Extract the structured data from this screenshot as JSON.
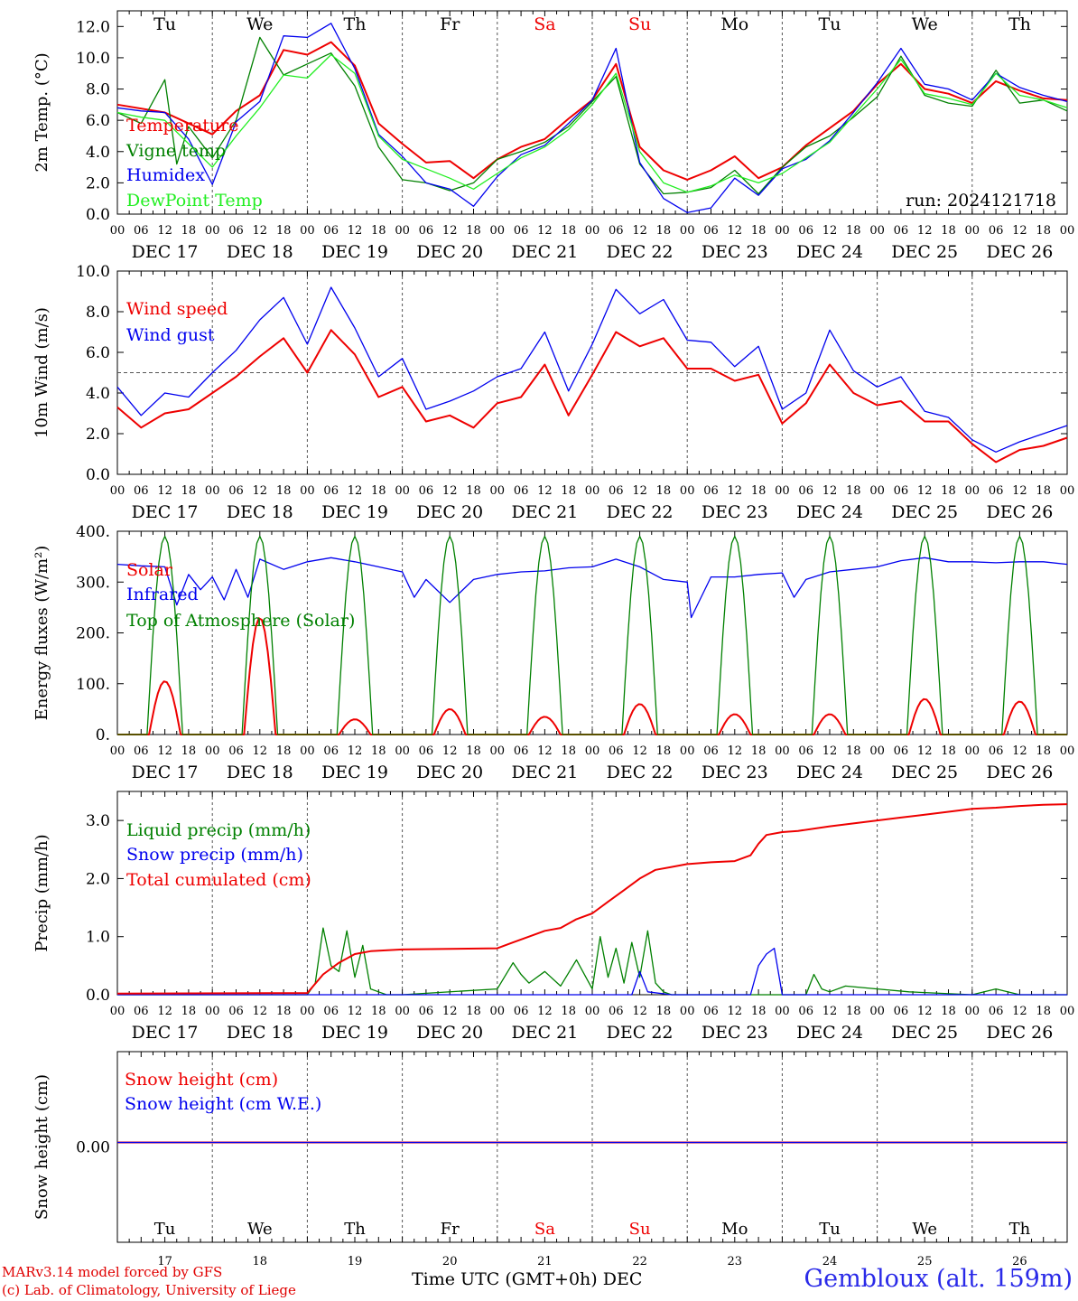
{
  "run_label": "run: 2024121718",
  "footer": {
    "credit_line1": "MARv3.14 model forced by GFS",
    "credit_line2": "(c) Lab. of Climatology, University of Liege",
    "x_title": "Time UTC (GMT+0h) DEC",
    "station": "Gembloux (alt. 159m)"
  },
  "colors": {
    "red": "#ee0000",
    "green": "#008000",
    "blue": "#0000ee",
    "lightgreen": "#22ee22",
    "weekend": "#ee0000"
  },
  "days": [
    {
      "wd": "Tu",
      "date": "DEC 17",
      "num": "17",
      "weekend": false
    },
    {
      "wd": "We",
      "date": "DEC 18",
      "num": "18",
      "weekend": false
    },
    {
      "wd": "Th",
      "date": "DEC 19",
      "num": "19",
      "weekend": false
    },
    {
      "wd": "Fr",
      "date": "DEC 20",
      "num": "20",
      "weekend": false
    },
    {
      "wd": "Sa",
      "date": "DEC 21",
      "num": "21",
      "weekend": true
    },
    {
      "wd": "Su",
      "date": "DEC 22",
      "num": "22",
      "weekend": true
    },
    {
      "wd": "Mo",
      "date": "DEC 23",
      "num": "23",
      "weekend": false
    },
    {
      "wd": "Tu",
      "date": "DEC 24",
      "num": "24",
      "weekend": false
    },
    {
      "wd": "We",
      "date": "DEC 25",
      "num": "25",
      "weekend": false
    },
    {
      "wd": "Th",
      "date": "DEC 26",
      "num": "26",
      "weekend": false
    }
  ],
  "hour_labels": [
    "00",
    "06",
    "12",
    "18"
  ],
  "chart_data": [
    {
      "type": "line",
      "ylabel": "2m Temp. (°C)",
      "ylim": [
        0,
        13
      ],
      "yticks": [
        "0.0",
        "2.0",
        "4.0",
        "6.0",
        "8.0",
        "10.0",
        "12.0"
      ],
      "x_unit": "hours since 2024-12-17 00 UTC",
      "series": [
        {
          "name": "Temperature",
          "color": "red",
          "x": [
            0,
            12,
            24,
            30,
            36,
            42,
            48,
            54,
            60,
            66,
            72,
            78,
            84,
            90,
            96,
            102,
            108,
            114,
            120,
            126,
            132,
            138,
            144,
            150,
            156,
            162,
            168,
            174,
            180,
            186,
            192,
            198,
            204,
            210,
            216,
            222,
            228,
            234,
            240
          ],
          "values": [
            7.0,
            6.5,
            5.1,
            6.6,
            7.6,
            10.5,
            10.2,
            11.0,
            9.5,
            5.8,
            4.5,
            3.3,
            3.4,
            2.3,
            3.5,
            4.3,
            4.8,
            6.1,
            7.3,
            9.6,
            4.3,
            2.8,
            2.2,
            2.8,
            3.7,
            2.3,
            3.0,
            4.4,
            5.5,
            6.6,
            8.3,
            9.6,
            8.0,
            7.7,
            7.1,
            8.5,
            7.9,
            7.4,
            7.3
          ]
        },
        {
          "name": "Vigne temp",
          "color": "green",
          "x": [
            0,
            6,
            12,
            15,
            18,
            24,
            30,
            36,
            42,
            48,
            54,
            60,
            66,
            72,
            78,
            84,
            90,
            96,
            102,
            108,
            114,
            120,
            126,
            132,
            138,
            144,
            150,
            156,
            162,
            168,
            174,
            180,
            186,
            192,
            198,
            204,
            210,
            216,
            222,
            228,
            234,
            240
          ],
          "values": [
            6.5,
            5.8,
            8.6,
            3.2,
            5.6,
            3.6,
            6.0,
            11.3,
            8.9,
            9.6,
            10.3,
            8.2,
            4.3,
            2.2,
            2.0,
            1.5,
            2.0,
            3.5,
            4.0,
            4.6,
            5.6,
            7.2,
            8.8,
            3.2,
            1.3,
            1.4,
            1.7,
            2.8,
            1.3,
            3.0,
            4.3,
            5.0,
            6.2,
            7.5,
            10.1,
            7.6,
            7.1,
            6.9,
            9.2,
            7.1,
            7.3,
            6.6
          ]
        },
        {
          "name": "Humidex",
          "color": "blue",
          "x": [
            0,
            6,
            12,
            18,
            24,
            30,
            36,
            42,
            48,
            54,
            60,
            66,
            72,
            78,
            84,
            90,
            96,
            102,
            108,
            114,
            120,
            126,
            132,
            138,
            144,
            150,
            156,
            162,
            168,
            174,
            180,
            186,
            192,
            198,
            204,
            210,
            216,
            222,
            228,
            234,
            240
          ],
          "values": [
            6.8,
            6.6,
            6.5,
            4.8,
            1.9,
            5.9,
            7.2,
            11.4,
            11.3,
            12.2,
            9.3,
            5.1,
            3.7,
            2.0,
            1.6,
            0.5,
            2.4,
            3.8,
            4.4,
            5.8,
            7.3,
            10.6,
            3.3,
            1.0,
            0.1,
            0.4,
            2.3,
            1.2,
            2.9,
            3.5,
            4.7,
            6.5,
            8.4,
            10.6,
            8.3,
            8.0,
            7.3,
            9.0,
            8.1,
            7.6,
            7.2
          ]
        },
        {
          "name": "DewPoint Temp",
          "color": "lightgreen",
          "x": [
            0,
            6,
            12,
            18,
            24,
            30,
            36,
            42,
            48,
            54,
            60,
            66,
            72,
            78,
            84,
            90,
            96,
            102,
            108,
            114,
            120,
            126,
            132,
            138,
            144,
            150,
            156,
            162,
            168,
            174,
            180,
            186,
            192,
            198,
            204,
            210,
            216,
            222,
            228,
            234,
            240
          ],
          "values": [
            6.5,
            6.2,
            6.0,
            4.5,
            3.0,
            5.0,
            6.8,
            8.9,
            8.7,
            10.2,
            9.0,
            5.0,
            3.5,
            2.9,
            2.3,
            1.6,
            2.6,
            3.6,
            4.3,
            5.4,
            7.0,
            9.0,
            4.0,
            2.0,
            1.4,
            1.8,
            2.5,
            2.0,
            2.6,
            3.6,
            4.6,
            6.3,
            8.0,
            9.9,
            7.7,
            7.4,
            7.0,
            9.0,
            7.6,
            7.3,
            6.8
          ]
        }
      ]
    },
    {
      "type": "line",
      "ylabel": "10m Wind (m/s)",
      "ylim": [
        0,
        10
      ],
      "yticks": [
        "0.0",
        "2.0",
        "4.0",
        "6.0",
        "8.0",
        "10.0"
      ],
      "ref_line": 5.0,
      "series": [
        {
          "name": "Wind speed",
          "color": "red",
          "x": [
            0,
            6,
            12,
            18,
            24,
            30,
            36,
            42,
            48,
            54,
            60,
            66,
            72,
            78,
            84,
            90,
            96,
            102,
            108,
            114,
            120,
            126,
            132,
            138,
            144,
            150,
            156,
            162,
            168,
            174,
            180,
            186,
            192,
            198,
            204,
            210,
            216,
            222,
            228,
            234,
            240
          ],
          "values": [
            3.3,
            2.3,
            3.0,
            3.2,
            4.0,
            4.8,
            5.8,
            6.7,
            5.0,
            7.1,
            5.9,
            3.8,
            4.3,
            2.6,
            2.9,
            2.3,
            3.5,
            3.8,
            5.4,
            2.9,
            4.9,
            7.0,
            6.3,
            6.7,
            5.2,
            5.2,
            4.6,
            4.9,
            2.5,
            3.5,
            5.4,
            4.0,
            3.4,
            3.6,
            2.6,
            2.6,
            1.5,
            0.6,
            1.2,
            1.4,
            1.8
          ]
        },
        {
          "name": "Wind gust",
          "color": "blue",
          "x": [
            0,
            6,
            12,
            18,
            24,
            30,
            36,
            42,
            48,
            54,
            60,
            66,
            72,
            78,
            84,
            90,
            96,
            102,
            108,
            114,
            120,
            126,
            132,
            138,
            144,
            150,
            156,
            162,
            168,
            174,
            180,
            186,
            192,
            198,
            204,
            210,
            216,
            222,
            228,
            234,
            240
          ],
          "values": [
            4.3,
            2.9,
            4.0,
            3.8,
            5.0,
            6.1,
            7.6,
            8.7,
            6.4,
            9.2,
            7.2,
            4.8,
            5.7,
            3.2,
            3.6,
            4.1,
            4.8,
            5.2,
            7.0,
            4.1,
            6.4,
            9.1,
            7.9,
            8.6,
            6.6,
            6.5,
            5.3,
            6.3,
            3.2,
            4.0,
            7.1,
            5.1,
            4.3,
            4.8,
            3.1,
            2.8,
            1.7,
            1.1,
            1.6,
            2.0,
            2.4
          ]
        }
      ]
    },
    {
      "type": "line",
      "ylabel": "Energy fluxes (W/m²)",
      "ylim": [
        0,
        400
      ],
      "yticks": [
        "0.",
        "100.",
        "200.",
        "300.",
        "400."
      ],
      "series": [
        {
          "name": "Solar",
          "color": "red",
          "peaks": [
            105,
            230,
            30,
            50,
            35,
            60,
            40,
            40,
            70,
            65
          ]
        },
        {
          "name": "Infrared",
          "color": "blue",
          "x": [
            0,
            6,
            12,
            15,
            18,
            21,
            24,
            27,
            30,
            33,
            36,
            42,
            48,
            54,
            60,
            66,
            72,
            75,
            78,
            84,
            90,
            96,
            102,
            108,
            114,
            120,
            126,
            132,
            138,
            144,
            145,
            150,
            156,
            162,
            168,
            171,
            174,
            180,
            186,
            192,
            198,
            204,
            210,
            216,
            222,
            228,
            234,
            240
          ],
          "values": [
            335,
            332,
            330,
            255,
            315,
            285,
            310,
            265,
            325,
            270,
            345,
            325,
            340,
            348,
            340,
            330,
            320,
            270,
            305,
            260,
            305,
            315,
            320,
            322,
            328,
            330,
            345,
            330,
            305,
            300,
            230,
            310,
            310,
            315,
            318,
            270,
            305,
            320,
            325,
            330,
            342,
            348,
            340,
            340,
            338,
            340,
            340,
            335
          ]
        },
        {
          "name": "Top of Atmosphere (Solar)",
          "color": "green",
          "peaks": [
            390,
            390,
            390,
            390,
            390,
            390,
            390,
            390,
            390,
            390
          ]
        }
      ]
    },
    {
      "type": "line",
      "ylabel": "Precip (mm/h)",
      "ylim": [
        0,
        3.5
      ],
      "yticks": [
        "0.0",
        "1.0",
        "2.0",
        "3.0"
      ],
      "series": [
        {
          "name": "Liquid precip (mm/h)",
          "color": "green",
          "x": [
            0,
            24,
            48,
            50,
            52,
            54,
            56,
            58,
            60,
            62,
            64,
            66,
            68,
            70,
            72,
            96,
            100,
            102,
            104,
            108,
            112,
            116,
            120,
            122,
            124,
            126,
            128,
            130,
            132,
            134,
            136,
            138,
            140,
            144,
            174,
            176,
            178,
            180,
            184,
            192,
            200,
            216,
            222,
            228,
            240
          ],
          "values": [
            0.0,
            0.0,
            0.0,
            0.2,
            1.15,
            0.5,
            0.4,
            1.1,
            0.3,
            0.85,
            0.1,
            0.05,
            0.0,
            0.0,
            0.0,
            0.1,
            0.55,
            0.35,
            0.2,
            0.4,
            0.15,
            0.6,
            0.1,
            1.0,
            0.3,
            0.8,
            0.2,
            0.9,
            0.3,
            1.1,
            0.2,
            0.05,
            0.0,
            0.0,
            0.0,
            0.35,
            0.1,
            0.05,
            0.15,
            0.1,
            0.05,
            0.0,
            0.1,
            0.0,
            0.0
          ]
        },
        {
          "name": "Snow precip (mm/h)",
          "color": "blue",
          "x": [
            0,
            130,
            132,
            134,
            140,
            160,
            162,
            164,
            166,
            168,
            170,
            240
          ],
          "values": [
            0.0,
            0.0,
            0.4,
            0.05,
            0.0,
            0.0,
            0.5,
            0.7,
            0.8,
            0.0,
            0.0,
            0.0
          ]
        },
        {
          "name": "Total cumulated (cm)",
          "color": "red",
          "x": [
            0,
            48,
            52,
            56,
            60,
            64,
            72,
            96,
            100,
            104,
            108,
            112,
            116,
            120,
            124,
            128,
            132,
            136,
            140,
            144,
            150,
            156,
            160,
            162,
            164,
            168,
            172,
            180,
            186,
            192,
            198,
            204,
            210,
            216,
            222,
            228,
            234,
            240
          ],
          "values": [
            0.02,
            0.03,
            0.35,
            0.55,
            0.7,
            0.75,
            0.78,
            0.8,
            0.9,
            1.0,
            1.1,
            1.15,
            1.3,
            1.4,
            1.6,
            1.8,
            2.0,
            2.15,
            2.2,
            2.25,
            2.28,
            2.3,
            2.4,
            2.6,
            2.75,
            2.8,
            2.82,
            2.9,
            2.95,
            3.0,
            3.05,
            3.1,
            3.15,
            3.2,
            3.22,
            3.25,
            3.27,
            3.28
          ]
        }
      ]
    },
    {
      "type": "line",
      "ylabel": "Snow height (cm)",
      "yticks": [
        "0.00"
      ],
      "series": [
        {
          "name": "Snow height (cm)",
          "color": "red",
          "x": [
            0,
            240
          ],
          "values": [
            0.0,
            0.0
          ]
        },
        {
          "name": "Snow height (cm W.E.)",
          "color": "blue",
          "x": [
            0,
            240
          ],
          "values": [
            0.0,
            0.0
          ]
        }
      ]
    }
  ]
}
